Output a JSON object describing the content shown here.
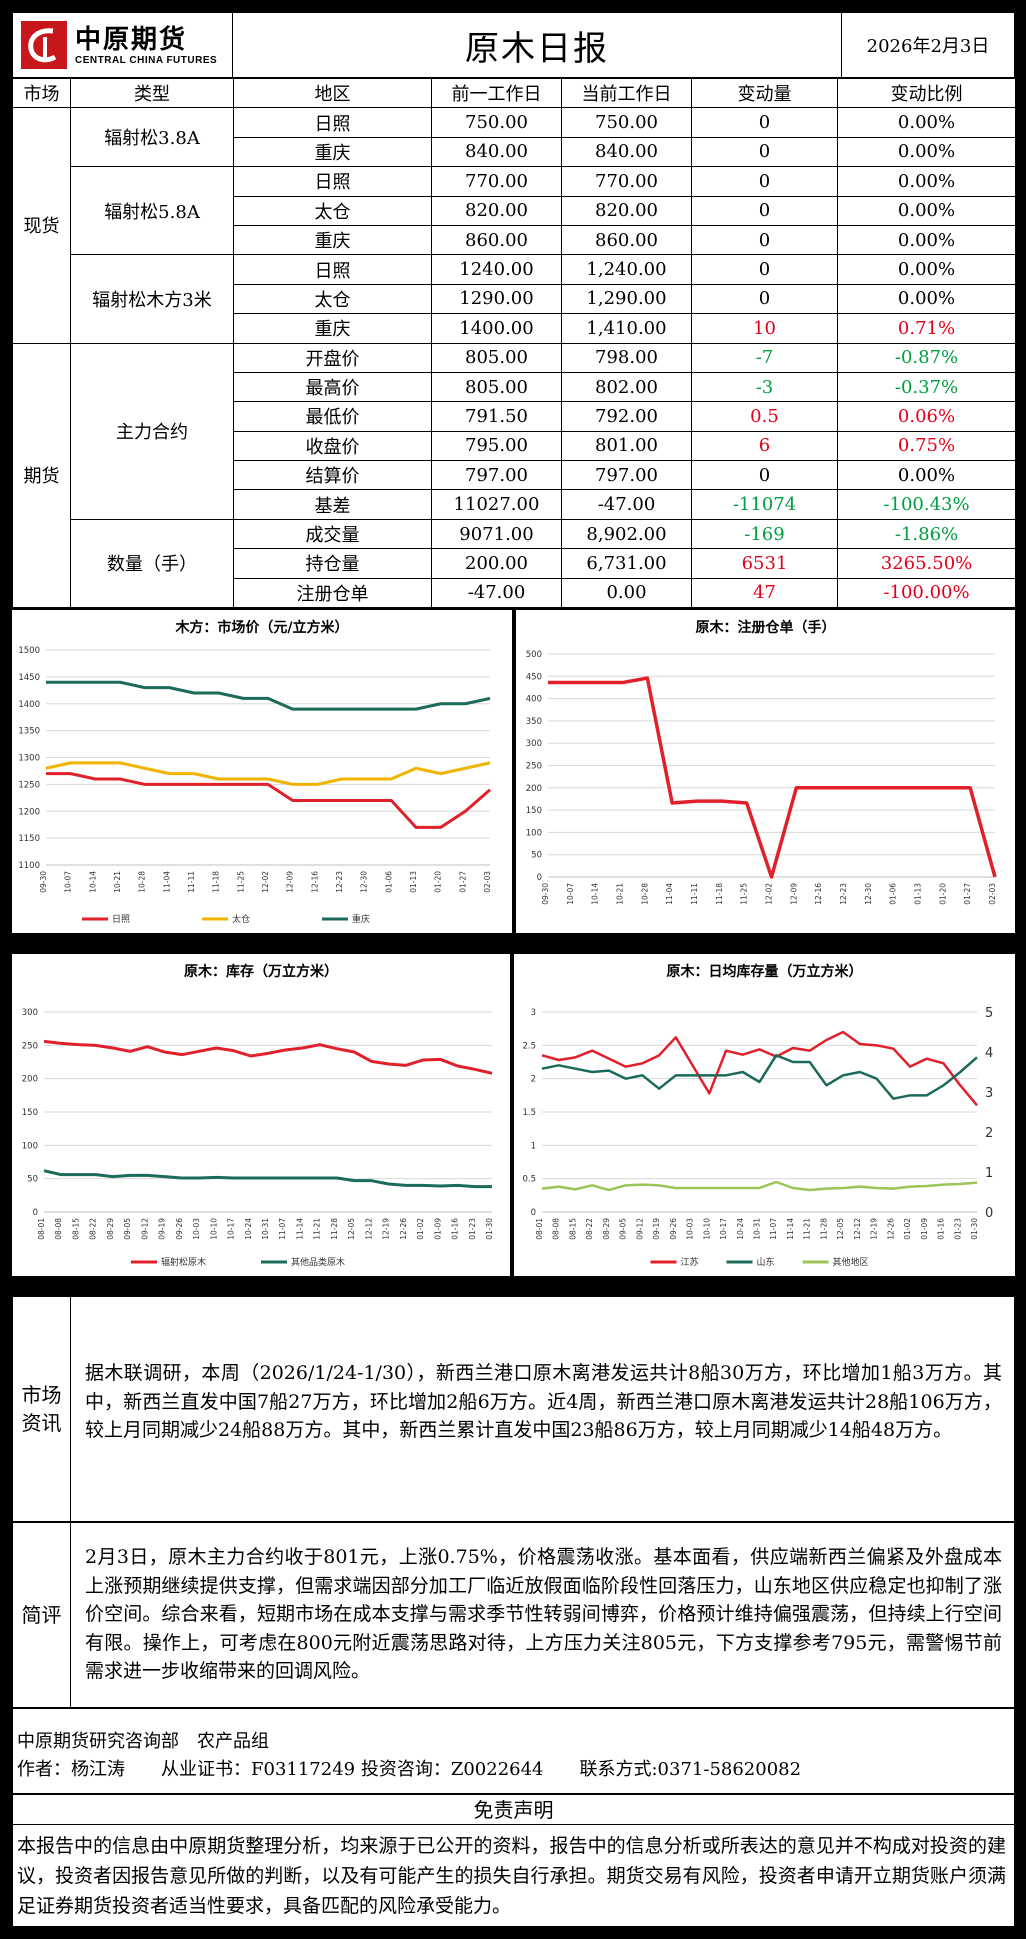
{
  "header": {
    "logo_cn": "中原期货",
    "logo_en": "CENTRAL CHINA FUTURES",
    "title": "原木日报",
    "date": "2026年2月3日"
  },
  "table": {
    "headers": [
      "市场",
      "类型",
      "地区",
      "前一工作日",
      "当前工作日",
      "变动量",
      "变动比例"
    ],
    "spot_label": "现货",
    "futures_label": "期货",
    "groups": {
      "g1": "辐射松3.8A",
      "g2": "辐射松5.8A",
      "g3": "辐射松木方3米",
      "g4": "主力合约",
      "g5": "数量（手）"
    },
    "rows": [
      {
        "region": "日照",
        "prev": "750.00",
        "curr": "750.00",
        "chg": "0",
        "pct": "0.00%"
      },
      {
        "region": "重庆",
        "prev": "840.00",
        "curr": "840.00",
        "chg": "0",
        "pct": "0.00%"
      },
      {
        "region": "日照",
        "prev": "770.00",
        "curr": "770.00",
        "chg": "0",
        "pct": "0.00%"
      },
      {
        "region": "太仓",
        "prev": "820.00",
        "curr": "820.00",
        "chg": "0",
        "pct": "0.00%"
      },
      {
        "region": "重庆",
        "prev": "860.00",
        "curr": "860.00",
        "chg": "0",
        "pct": "0.00%"
      },
      {
        "region": "日照",
        "prev": "1240.00",
        "curr": "1,240.00",
        "chg": "0",
        "pct": "0.00%"
      },
      {
        "region": "太仓",
        "prev": "1290.00",
        "curr": "1,290.00",
        "chg": "0",
        "pct": "0.00%"
      },
      {
        "region": "重庆",
        "prev": "1400.00",
        "curr": "1,410.00",
        "chg": "10",
        "pct": "0.71%"
      },
      {
        "region": "开盘价",
        "prev": "805.00",
        "curr": "798.00",
        "chg": "-7",
        "pct": "-0.87%"
      },
      {
        "region": "最高价",
        "prev": "805.00",
        "curr": "802.00",
        "chg": "-3",
        "pct": "-0.37%"
      },
      {
        "region": "最低价",
        "prev": "791.50",
        "curr": "792.00",
        "chg": "0.5",
        "pct": "0.06%"
      },
      {
        "region": "收盘价",
        "prev": "795.00",
        "curr": "801.00",
        "chg": "6",
        "pct": "0.75%"
      },
      {
        "region": "结算价",
        "prev": "797.00",
        "curr": "797.00",
        "chg": "0",
        "pct": "0.00%"
      },
      {
        "region": "基差",
        "prev": "11027.00",
        "curr": "-47.00",
        "chg": "-11074",
        "pct": "-100.43%"
      },
      {
        "region": "成交量",
        "prev": "9071.00",
        "curr": "8,902.00",
        "chg": "-169",
        "pct": "-1.86%"
      },
      {
        "region": "持仓量",
        "prev": "200.00",
        "curr": "6,731.00",
        "chg": "6531",
        "pct": "3265.50%"
      },
      {
        "region": "注册仓单",
        "prev": "-47.00",
        "curr": "0.00",
        "chg": "47",
        "pct": "-100.00%"
      }
    ],
    "colors": {
      "up": "#e0001b",
      "down": "#00a040"
    }
  },
  "chart_data": [
    {
      "type": "line",
      "title": "木方：市场价（元/立方米）",
      "x": [
        "09-30",
        "10-07",
        "10-14",
        "10-21",
        "10-28",
        "11-04",
        "11-11",
        "11-18",
        "11-25",
        "12-02",
        "12-09",
        "12-16",
        "12-23",
        "12-30",
        "01-06",
        "01-13",
        "01-20",
        "01-27",
        "02-03"
      ],
      "ylim": [
        1100,
        1500
      ],
      "yticks": [
        1100,
        1150,
        1200,
        1250,
        1300,
        1350,
        1400,
        1450,
        1500
      ],
      "series": [
        {
          "name": "日照",
          "color": "#e0202a",
          "values": [
            1270,
            1270,
            1260,
            1260,
            1250,
            1250,
            1250,
            1250,
            1250,
            1250,
            1220,
            1220,
            1220,
            1220,
            1220,
            1170,
            1170,
            1200,
            1240
          ]
        },
        {
          "name": "太仓",
          "color": "#f0b400",
          "values": [
            1280,
            1290,
            1290,
            1290,
            1280,
            1270,
            1270,
            1260,
            1260,
            1260,
            1250,
            1250,
            1260,
            1260,
            1260,
            1280,
            1270,
            1280,
            1290
          ]
        },
        {
          "name": "重庆",
          "color": "#1c6a5a",
          "values": [
            1440,
            1440,
            1440,
            1440,
            1430,
            1430,
            1420,
            1420,
            1410,
            1410,
            1390,
            1390,
            1390,
            1390,
            1390,
            1390,
            1400,
            1400,
            1410
          ]
        }
      ]
    },
    {
      "type": "line",
      "title": "原木：注册仓单（手）",
      "x": [
        "09-30",
        "10-07",
        "10-14",
        "10-21",
        "10-28",
        "11-04",
        "11-11",
        "11-18",
        "11-25",
        "12-02",
        "12-09",
        "12-16",
        "12-23",
        "12-30",
        "01-06",
        "01-13",
        "01-20",
        "01-27",
        "02-03"
      ],
      "ylim": [
        0,
        500
      ],
      "yticks": [
        0,
        50,
        100,
        150,
        200,
        250,
        300,
        350,
        400,
        450,
        500
      ],
      "series": [
        {
          "name": "",
          "color": "#e0202a",
          "values": [
            436,
            436,
            436,
            436,
            446,
            166,
            170,
            170,
            166,
            0,
            200,
            200,
            200,
            200,
            200,
            200,
            200,
            200,
            0
          ]
        }
      ]
    },
    {
      "type": "line",
      "title": "原木：库存（万立方米）",
      "x": [
        "08-01",
        "08-08",
        "08-15",
        "08-22",
        "08-29",
        "09-05",
        "09-12",
        "09-19",
        "09-26",
        "10-03",
        "10-10",
        "10-17",
        "10-24",
        "10-31",
        "11-07",
        "11-14",
        "11-21",
        "11-28",
        "12-05",
        "12-12",
        "12-19",
        "12-26",
        "01-02",
        "01-09",
        "01-16",
        "01-23",
        "01-30"
      ],
      "ylim": [
        0,
        300
      ],
      "yticks": [
        0,
        50,
        100,
        150,
        200,
        250,
        300
      ],
      "series": [
        {
          "name": "辐射松原木",
          "color": "#e0202a",
          "values": [
            256,
            253,
            251,
            250,
            246,
            241,
            248,
            240,
            236,
            241,
            246,
            242,
            234,
            238,
            243,
            246,
            251,
            245,
            240,
            226,
            222,
            220,
            228,
            229,
            219,
            214,
            208
          ]
        },
        {
          "name": "其他品类原木",
          "color": "#1c6a5a",
          "values": [
            62,
            56,
            56,
            56,
            53,
            55,
            55,
            53,
            51,
            51,
            52,
            51,
            51,
            51,
            51,
            51,
            51,
            51,
            47,
            47,
            42,
            40,
            40,
            39,
            40,
            38,
            38
          ]
        }
      ]
    },
    {
      "type": "line",
      "title": "原木：日均库存量（万立方米）",
      "x": [
        "08-01",
        "08-08",
        "08-15",
        "08-22",
        "08-29",
        "09-05",
        "09-12",
        "09-19",
        "09-26",
        "10-03",
        "10-10",
        "10-17",
        "10-24",
        "10-31",
        "11-07",
        "11-14",
        "11-21",
        "11-28",
        "12-05",
        "12-12",
        "12-19",
        "12-26",
        "01-02",
        "01-09",
        "01-16",
        "01-23",
        "01-30"
      ],
      "ylim": [
        0,
        3
      ],
      "yticks": [
        0,
        0.5,
        1,
        1.5,
        2,
        2.5,
        3
      ],
      "y2lim": [
        0,
        5
      ],
      "y2ticks": [
        0,
        1,
        2,
        3,
        4,
        5
      ],
      "series": [
        {
          "name": "江苏",
          "color": "#e0202a",
          "axis": "left",
          "values": [
            2.35,
            2.28,
            2.32,
            2.42,
            2.3,
            2.18,
            2.23,
            2.35,
            2.62,
            2.2,
            1.78,
            2.42,
            2.36,
            2.44,
            2.33,
            2.46,
            2.42,
            2.58,
            2.7,
            2.52,
            2.5,
            2.45,
            2.18,
            2.3,
            2.23,
            1.9,
            1.6
          ]
        },
        {
          "name": "山东",
          "color": "#1c6a5a",
          "axis": "left",
          "values": [
            2.15,
            2.2,
            2.15,
            2.1,
            2.12,
            2.0,
            2.05,
            1.85,
            2.05,
            2.05,
            2.05,
            2.05,
            2.1,
            1.95,
            2.35,
            2.25,
            2.25,
            1.9,
            2.05,
            2.1,
            2.0,
            1.7,
            1.75,
            1.75,
            1.9,
            2.1,
            2.32
          ]
        },
        {
          "name": "其他地区",
          "color": "#9cc456",
          "axis": "left",
          "values": [
            0.35,
            0.38,
            0.34,
            0.4,
            0.33,
            0.4,
            0.41,
            0.4,
            0.36,
            0.36,
            0.36,
            0.36,
            0.36,
            0.36,
            0.45,
            0.36,
            0.33,
            0.35,
            0.36,
            0.38,
            0.36,
            0.35,
            0.38,
            0.39,
            0.41,
            0.42,
            0.44
          ]
        }
      ]
    }
  ],
  "info": {
    "label": "市场资讯",
    "text": "据木联调研，本周（2026/1/24-1/30），新西兰港口原木离港发运共计8船30万方，环比增加1船3万方。其中，新西兰直发中国7船27万方，环比增加2船6万方。近4周，新西兰港口原木离港发运共计28船106万方，较上月同期减少24船88万方。其中，新西兰累计直发中国23船86万方，较上月同期减少14船48万方。"
  },
  "comment": {
    "label": "简评",
    "text": "2月3日，原木主力合约收于801元，上涨0.75%，价格震荡收涨。基本面看，供应端新西兰偏紧及外盘成本上涨预期继续提供支撑，但需求端因部分加工厂临近放假面临阶段性回落压力，山东地区供应稳定也抑制了涨价空间。综合来看，短期市场在成本支撑与需求季节性转弱间博弈，价格预计维持偏强震荡，但持续上行空间有限。操作上，可考虑在800元附近震荡思路对待，上方压力关注805元，下方支撑参考795元，需警惕节前需求进一步收缩带来的回调风险。"
  },
  "author": {
    "line1": "中原期货研究咨询部　农产品组",
    "line2": "作者：杨江涛　　从业证书：F03117249 投资咨询：Z0022644　　联系方式:0371-58620082"
  },
  "disclaimer": {
    "title": "免责声明",
    "text": "本报告中的信息由中原期货整理分析，均来源于已公开的资料，报告中的信息分析或所表达的意见并不构成对投资的建议，投资者因报告意见所做的判断，以及有可能产生的损失自行承担。期货交易有风险，投资者申请开立期货账户须满足证券期货投资者适当性要求，具备匹配的风险承受能力。"
  }
}
